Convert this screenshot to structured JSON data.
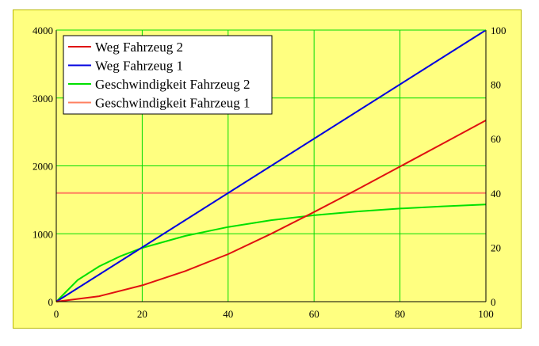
{
  "chart_data": {
    "type": "line",
    "title": "",
    "xlabel": "",
    "ylabel": "",
    "xlim": [
      0,
      100
    ],
    "ylim": [
      0,
      4000
    ],
    "ylim_right": [
      0,
      100
    ],
    "x_ticks": [
      "0",
      "20",
      "40",
      "60",
      "80",
      "100"
    ],
    "y_ticks_left": [
      "0",
      "1000",
      "2000",
      "3000",
      "4000"
    ],
    "y_ticks_right": [
      "0",
      "20",
      "40",
      "60",
      "80",
      "100"
    ],
    "grid": true,
    "legend_position": "top-left",
    "series": [
      {
        "name": "Weg Fahrzeug 2",
        "color": "#e01010",
        "axis": "left",
        "x": [
          0,
          10,
          20,
          30,
          40,
          50,
          60,
          70,
          80,
          90,
          100
        ],
        "y": [
          0,
          80,
          240,
          450,
          700,
          1000,
          1320,
          1650,
          1990,
          2330,
          2670
        ]
      },
      {
        "name": "Weg Fahrzeug 1",
        "color": "#0000e0",
        "axis": "left",
        "x": [
          0,
          100
        ],
        "y": [
          0,
          4000
        ]
      },
      {
        "name": "Geschwindigkeit Fahrzeug 2",
        "color": "#00e000",
        "axis": "right",
        "x": [
          0,
          5,
          10,
          15,
          20,
          30,
          40,
          50,
          60,
          70,
          80,
          90,
          100
        ],
        "y": [
          0,
          8,
          13,
          16.8,
          19.8,
          24.2,
          27.5,
          30,
          31.8,
          33.2,
          34.3,
          35.1,
          35.8
        ]
      },
      {
        "name": "Geschwindigkeit Fahrzeug 1",
        "color": "#ff8060",
        "axis": "right",
        "x": [
          0,
          100
        ],
        "y": [
          40,
          40
        ]
      }
    ]
  },
  "colors": {
    "background": "#ffff80",
    "grid": "#00dd00",
    "axis": "#000000"
  }
}
